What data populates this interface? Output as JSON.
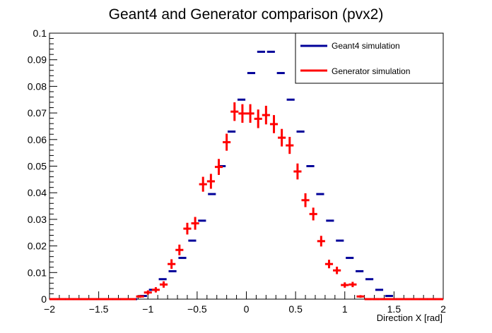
{
  "chart_data": {
    "type": "scatter",
    "title": "Geant4 and Generator comparison (pvx2)",
    "xlabel": "Direction X [rad]",
    "ylabel": "",
    "xlim": [
      -2,
      2
    ],
    "ylim": [
      0,
      0.1
    ],
    "x_ticks": [
      -2,
      -1.5,
      -1,
      -0.5,
      0,
      0.5,
      1,
      1.5,
      2
    ],
    "x_tick_labels": [
      "−2",
      "−1.5",
      "−1",
      "−0.5",
      "0",
      "0.5",
      "1",
      "1.5",
      "2"
    ],
    "y_ticks": [
      0,
      0.01,
      0.02,
      0.03,
      0.04,
      0.05,
      0.06,
      0.07,
      0.08,
      0.09,
      0.1
    ],
    "y_tick_labels": [
      "0",
      "0.01",
      "0.02",
      "0.03",
      "0.04",
      "0.05",
      "0.06",
      "0.07",
      "0.08",
      "0.09",
      "0.1"
    ],
    "grid": false,
    "legend_position": "top-right",
    "series": [
      {
        "name": "Geant4 simulation",
        "color": "#000099",
        "style": "histogram-steps",
        "points": [
          {
            "x": -1.95,
            "y": 0
          },
          {
            "x": -1.85,
            "y": 0
          },
          {
            "x": -1.75,
            "y": 0
          },
          {
            "x": -1.65,
            "y": 0
          },
          {
            "x": -1.55,
            "y": 0
          },
          {
            "x": -1.45,
            "y": 0
          },
          {
            "x": -1.35,
            "y": 0
          },
          {
            "x": -1.25,
            "y": 0
          },
          {
            "x": -1.15,
            "y": 0
          },
          {
            "x": -1.05,
            "y": 0.0012
          },
          {
            "x": -0.95,
            "y": 0.0035
          },
          {
            "x": -0.85,
            "y": 0.0075
          },
          {
            "x": -0.75,
            "y": 0.0105
          },
          {
            "x": -0.65,
            "y": 0.0155
          },
          {
            "x": -0.55,
            "y": 0.022
          },
          {
            "x": -0.45,
            "y": 0.0295
          },
          {
            "x": -0.35,
            "y": 0.0395
          },
          {
            "x": -0.25,
            "y": 0.05
          },
          {
            "x": -0.15,
            "y": 0.063
          },
          {
            "x": -0.05,
            "y": 0.075
          },
          {
            "x": 0.05,
            "y": 0.085
          },
          {
            "x": 0.15,
            "y": 0.093
          },
          {
            "x": 0.25,
            "y": 0.093
          },
          {
            "x": 0.35,
            "y": 0.085
          },
          {
            "x": 0.45,
            "y": 0.075
          },
          {
            "x": 0.55,
            "y": 0.063
          },
          {
            "x": 0.65,
            "y": 0.05
          },
          {
            "x": 0.75,
            "y": 0.0395
          },
          {
            "x": 0.85,
            "y": 0.0295
          },
          {
            "x": 0.95,
            "y": 0.022
          },
          {
            "x": 1.05,
            "y": 0.0155
          },
          {
            "x": 1.15,
            "y": 0.0105
          },
          {
            "x": 1.25,
            "y": 0.0075
          },
          {
            "x": 1.35,
            "y": 0.0035
          },
          {
            "x": 1.45,
            "y": 0.0012
          },
          {
            "x": 1.55,
            "y": 0
          },
          {
            "x": 1.65,
            "y": 0
          },
          {
            "x": 1.75,
            "y": 0
          },
          {
            "x": 1.85,
            "y": 0
          },
          {
            "x": 1.95,
            "y": 0
          }
        ]
      },
      {
        "name": "Generator simulation",
        "color": "#ff0000",
        "style": "error-bars",
        "x_half_width": 0.04,
        "points": [
          {
            "x": -1.96,
            "y": 0,
            "err": 0
          },
          {
            "x": -1.88,
            "y": 0,
            "err": 0
          },
          {
            "x": -1.8,
            "y": 0,
            "err": 0
          },
          {
            "x": -1.72,
            "y": 0,
            "err": 0
          },
          {
            "x": -1.64,
            "y": 0,
            "err": 0
          },
          {
            "x": -1.56,
            "y": 0,
            "err": 0
          },
          {
            "x": -1.48,
            "y": 0,
            "err": 0
          },
          {
            "x": -1.4,
            "y": 0,
            "err": 0
          },
          {
            "x": -1.32,
            "y": 0,
            "err": 0
          },
          {
            "x": -1.24,
            "y": 0,
            "err": 0
          },
          {
            "x": -1.16,
            "y": 0,
            "err": 0
          },
          {
            "x": -1.08,
            "y": 0.001,
            "err": 0.0005
          },
          {
            "x": -1.0,
            "y": 0.0025,
            "err": 0.0008
          },
          {
            "x": -0.92,
            "y": 0.0035,
            "err": 0.001
          },
          {
            "x": -0.84,
            "y": 0.0055,
            "err": 0.0012
          },
          {
            "x": -0.76,
            "y": 0.0132,
            "err": 0.0018
          },
          {
            "x": -0.68,
            "y": 0.0185,
            "err": 0.002
          },
          {
            "x": -0.6,
            "y": 0.0265,
            "err": 0.0022
          },
          {
            "x": -0.52,
            "y": 0.0285,
            "err": 0.0024
          },
          {
            "x": -0.44,
            "y": 0.0432,
            "err": 0.0028
          },
          {
            "x": -0.36,
            "y": 0.0443,
            "err": 0.0028
          },
          {
            "x": -0.28,
            "y": 0.0497,
            "err": 0.003
          },
          {
            "x": -0.2,
            "y": 0.059,
            "err": 0.0032
          },
          {
            "x": -0.12,
            "y": 0.0705,
            "err": 0.0035
          },
          {
            "x": -0.04,
            "y": 0.0698,
            "err": 0.0035
          },
          {
            "x": 0.04,
            "y": 0.0698,
            "err": 0.0035
          },
          {
            "x": 0.12,
            "y": 0.0678,
            "err": 0.0035
          },
          {
            "x": 0.2,
            "y": 0.0692,
            "err": 0.0035
          },
          {
            "x": 0.28,
            "y": 0.0658,
            "err": 0.0034
          },
          {
            "x": 0.36,
            "y": 0.0607,
            "err": 0.0033
          },
          {
            "x": 0.44,
            "y": 0.0578,
            "err": 0.0032
          },
          {
            "x": 0.52,
            "y": 0.048,
            "err": 0.003
          },
          {
            "x": 0.6,
            "y": 0.0372,
            "err": 0.0026
          },
          {
            "x": 0.68,
            "y": 0.032,
            "err": 0.0024
          },
          {
            "x": 0.76,
            "y": 0.0218,
            "err": 0.002
          },
          {
            "x": 0.84,
            "y": 0.0132,
            "err": 0.0016
          },
          {
            "x": 0.92,
            "y": 0.0108,
            "err": 0.0014
          },
          {
            "x": 1.0,
            "y": 0.0053,
            "err": 0.001
          },
          {
            "x": 1.08,
            "y": 0.0055,
            "err": 0.001
          },
          {
            "x": 1.16,
            "y": 0.001,
            "err": 0.0005
          },
          {
            "x": 1.24,
            "y": 0,
            "err": 0
          },
          {
            "x": 1.32,
            "y": 0,
            "err": 0
          },
          {
            "x": 1.4,
            "y": 0,
            "err": 0
          },
          {
            "x": 1.48,
            "y": 0,
            "err": 0
          },
          {
            "x": 1.56,
            "y": 0,
            "err": 0
          },
          {
            "x": 1.64,
            "y": 0,
            "err": 0
          },
          {
            "x": 1.72,
            "y": 0,
            "err": 0
          },
          {
            "x": 1.8,
            "y": 0,
            "err": 0
          },
          {
            "x": 1.88,
            "y": 0,
            "err": 0
          },
          {
            "x": 1.96,
            "y": 0,
            "err": 0
          }
        ]
      }
    ]
  }
}
